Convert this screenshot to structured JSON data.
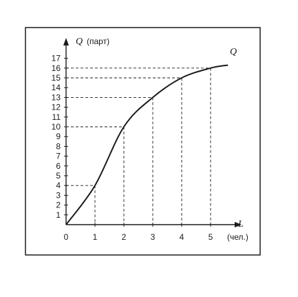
{
  "chart_data": {
    "type": "line",
    "x": [
      0,
      1,
      2,
      3,
      4,
      5,
      5.6
    ],
    "series": [
      {
        "name": "Q",
        "values": [
          0,
          4,
          10,
          13,
          15,
          16,
          16.3
        ]
      }
    ],
    "marked_points": [
      {
        "x": 1,
        "y": 4
      },
      {
        "x": 2,
        "y": 10
      },
      {
        "x": 3,
        "y": 13
      },
      {
        "x": 4,
        "y": 15
      },
      {
        "x": 5,
        "y": 16
      }
    ],
    "xticks": [
      0,
      1,
      2,
      3,
      4,
      5
    ],
    "yticks": [
      1,
      2,
      3,
      4,
      5,
      6,
      7,
      8,
      9,
      10,
      11,
      12,
      13,
      14,
      15,
      16,
      17
    ],
    "xlim": [
      0,
      5.7
    ],
    "ylim": [
      0,
      18
    ],
    "xlabel": "L",
    "xunit": "(чел.)",
    "ylabel": "Q",
    "yunit": "(парт)",
    "grid": false,
    "dashed_guides": true
  }
}
